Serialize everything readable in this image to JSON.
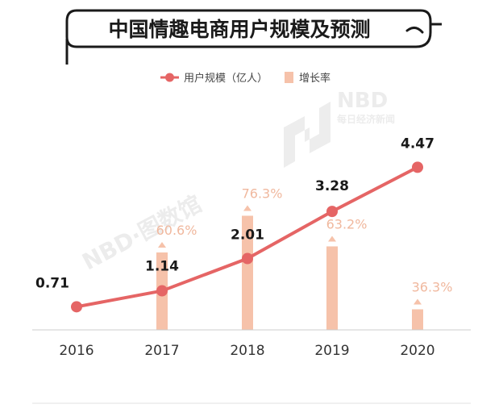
{
  "chart_data": {
    "type": "bar+line",
    "title": "中国情趣电商用户规模及预测",
    "categories": [
      "2016",
      "2017",
      "2018",
      "2019",
      "2020"
    ],
    "series": [
      {
        "name": "用户规模（亿人）",
        "type": "line",
        "values": [
          0.71,
          1.14,
          2.01,
          3.28,
          4.47
        ],
        "labels": [
          "0.71",
          "1.14",
          "2.01",
          "3.28",
          "4.47"
        ],
        "color": "#e56565"
      },
      {
        "name": "增长率",
        "type": "bar",
        "values": [
          null,
          60.6,
          76.3,
          63.2,
          36.3
        ],
        "labels": [
          "",
          "60.6%",
          "76.3%",
          "63.2%",
          "36.3%"
        ],
        "color": "#f6c2aa"
      }
    ],
    "user_scale_ylim": [
      0,
      5
    ],
    "growth_ylim": [
      0,
      100
    ],
    "legend_position": "top-center",
    "grid": false
  },
  "watermarks": [
    "NBD",
    "每日经济新闻",
    "NBD·图数馆"
  ],
  "colors": {
    "line": "#e56565",
    "bar": "#f6c2aa",
    "rate_text": "#f0b89e",
    "axis": "#cccccc"
  }
}
